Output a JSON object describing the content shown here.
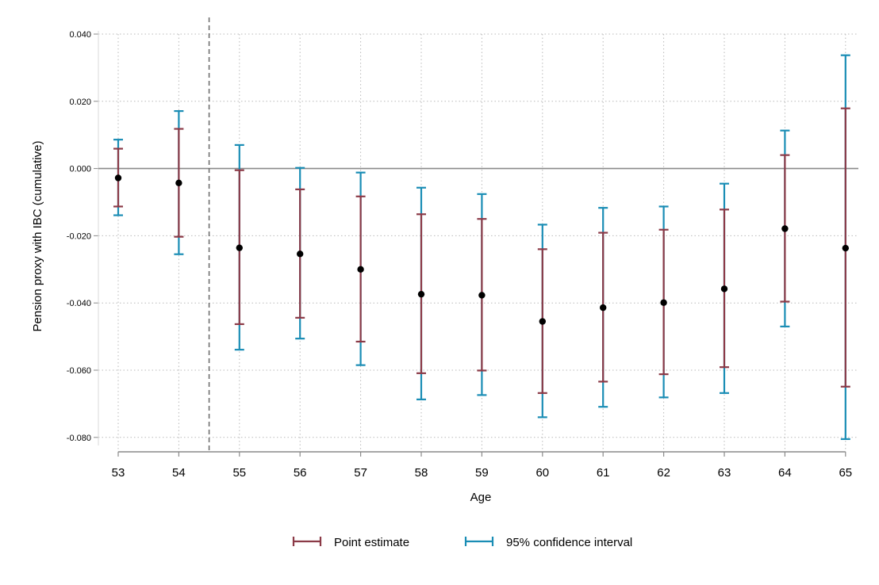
{
  "chart_data": {
    "type": "errorbar",
    "xlabel": "Age",
    "ylabel": "Pension proxy with IBC (cumulative)",
    "categories": [
      "53",
      "54",
      "55",
      "56",
      "57",
      "58",
      "59",
      "60",
      "61",
      "62",
      "63",
      "64",
      "65"
    ],
    "yticks": [
      "0.040",
      "0.020",
      "0.000",
      "-0.020",
      "-0.040",
      "-0.060",
      "-0.080"
    ],
    "ylim": [
      -0.085,
      0.04
    ],
    "grid": true,
    "reference_line_y": 0,
    "vertical_dashed_line_x": 54.5,
    "legend_position": "bottom",
    "series": [
      {
        "name": "Point estimate",
        "role": "point",
        "values": [
          -0.0028,
          -0.0043,
          -0.0236,
          -0.0254,
          -0.03,
          -0.0374,
          -0.0377,
          -0.0455,
          -0.0414,
          -0.0399,
          -0.0358,
          -0.0179,
          -0.0237
        ]
      },
      {
        "role": "inner-interval",
        "color": "#8b3a47",
        "lower": [
          -0.0113,
          -0.0203,
          -0.0463,
          -0.0444,
          -0.0515,
          -0.0609,
          -0.0601,
          -0.0668,
          -0.0634,
          -0.0612,
          -0.0591,
          -0.0396,
          -0.0649
        ],
        "upper": [
          0.0059,
          0.0118,
          -0.0005,
          -0.0062,
          -0.0083,
          -0.0136,
          -0.015,
          -0.024,
          -0.0191,
          -0.0182,
          -0.0122,
          0.004,
          0.0179
        ]
      },
      {
        "name": "95% confidence interval",
        "role": "outer-interval",
        "color": "#1a8db5",
        "lower": [
          -0.0139,
          -0.0255,
          -0.0539,
          -0.0506,
          -0.0585,
          -0.0687,
          -0.0674,
          -0.074,
          -0.0709,
          -0.0681,
          -0.0668,
          -0.047,
          -0.0805
        ],
        "upper": [
          0.0086,
          0.0171,
          0.007,
          0.0002,
          -0.0012,
          -0.0057,
          -0.0076,
          -0.0167,
          -0.0117,
          -0.0113,
          -0.0045,
          0.0113,
          0.0337
        ]
      }
    ]
  },
  "legend": {
    "point_label": "Point estimate",
    "ci_label": "95% confidence interval"
  }
}
